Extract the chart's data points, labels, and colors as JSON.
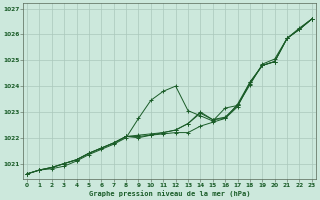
{
  "xlabel": "Graphe pression niveau de la mer (hPa)",
  "background_color": "#cce8dc",
  "grid_color": "#aac8bc",
  "line_color": "#1a5c28",
  "x_ticks": [
    0,
    1,
    2,
    3,
    4,
    5,
    6,
    7,
    8,
    9,
    10,
    11,
    12,
    13,
    14,
    15,
    16,
    17,
    18,
    19,
    20,
    21,
    22,
    23
  ],
  "ylim": [
    1020.4,
    1027.2
  ],
  "xlim": [
    -0.3,
    23.3
  ],
  "yticks": [
    1021,
    1022,
    1023,
    1024,
    1025,
    1026,
    1027
  ],
  "series": [
    [
      1020.6,
      1020.75,
      1020.8,
      1020.9,
      1021.1,
      1021.35,
      1021.55,
      1021.75,
      1022.0,
      1022.75,
      1023.45,
      1023.8,
      1024.0,
      1023.05,
      1022.85,
      1022.65,
      1023.15,
      1023.25,
      1024.05,
      1024.85,
      1025.05,
      1025.85,
      1026.25,
      1026.6
    ],
    [
      1020.6,
      1020.75,
      1020.85,
      1021.0,
      1021.15,
      1021.4,
      1021.6,
      1021.8,
      1022.05,
      1022.0,
      1022.1,
      1022.2,
      1022.3,
      1022.55,
      1022.95,
      1022.7,
      1022.8,
      1023.25,
      1024.1,
      1024.8,
      1024.95,
      1025.85,
      1026.2,
      1026.6
    ],
    [
      1020.6,
      1020.75,
      1020.85,
      1021.0,
      1021.15,
      1021.4,
      1021.6,
      1021.8,
      1022.05,
      1022.05,
      1022.1,
      1022.15,
      1022.2,
      1022.2,
      1022.45,
      1022.6,
      1022.75,
      1023.2,
      1024.15,
      1024.8,
      1024.95,
      1025.85,
      1026.2,
      1026.6
    ],
    [
      1020.6,
      1020.75,
      1020.85,
      1021.0,
      1021.15,
      1021.4,
      1021.6,
      1021.8,
      1022.05,
      1022.1,
      1022.15,
      1022.2,
      1022.3,
      1022.55,
      1023.0,
      1022.7,
      1022.75,
      1023.3,
      1024.15,
      1024.8,
      1024.95,
      1025.85,
      1026.2,
      1026.6
    ]
  ]
}
